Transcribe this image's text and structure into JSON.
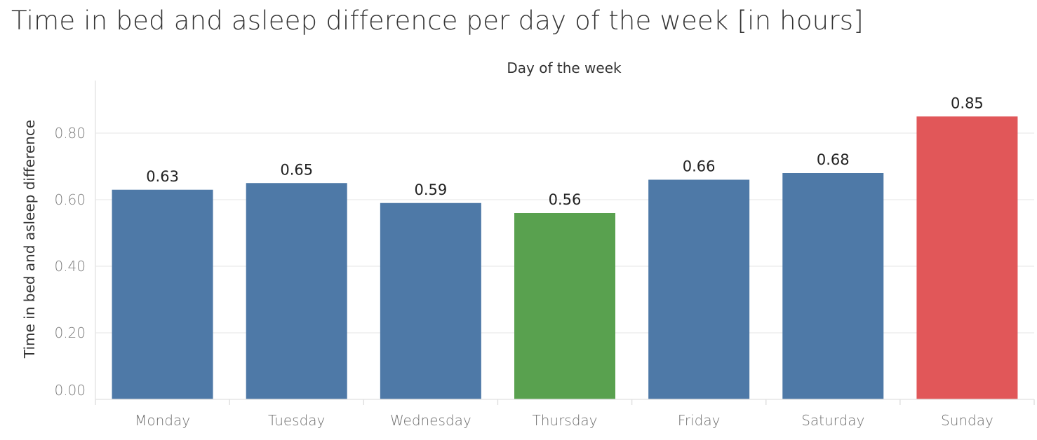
{
  "chart_data": {
    "type": "bar",
    "title": "Time in bed and asleep difference per day of the week  [in hours]",
    "xlabel": "Day of the week",
    "ylabel": "Time in bed and asleep difference",
    "categories": [
      "Monday",
      "Tuesday",
      "Wednesday",
      "Thursday",
      "Friday",
      "Saturday",
      "Sunday"
    ],
    "values": [
      0.63,
      0.65,
      0.59,
      0.56,
      0.66,
      0.68,
      0.85
    ],
    "value_labels": [
      "0.63",
      "0.65",
      "0.59",
      "0.56",
      "0.66",
      "0.68",
      "0.85"
    ],
    "bar_colors": [
      "#4e79a7",
      "#4e79a7",
      "#4e79a7",
      "#59a14f",
      "#4e79a7",
      "#4e79a7",
      "#e15759"
    ],
    "ylim": [
      0,
      0.96
    ],
    "yticks": [
      0,
      0.2,
      0.4,
      0.6,
      0.8
    ],
    "ytick_labels": [
      "0.00",
      "0.20",
      "0.40",
      "0.60",
      "0.80"
    ],
    "grid": true,
    "legend": "none"
  }
}
